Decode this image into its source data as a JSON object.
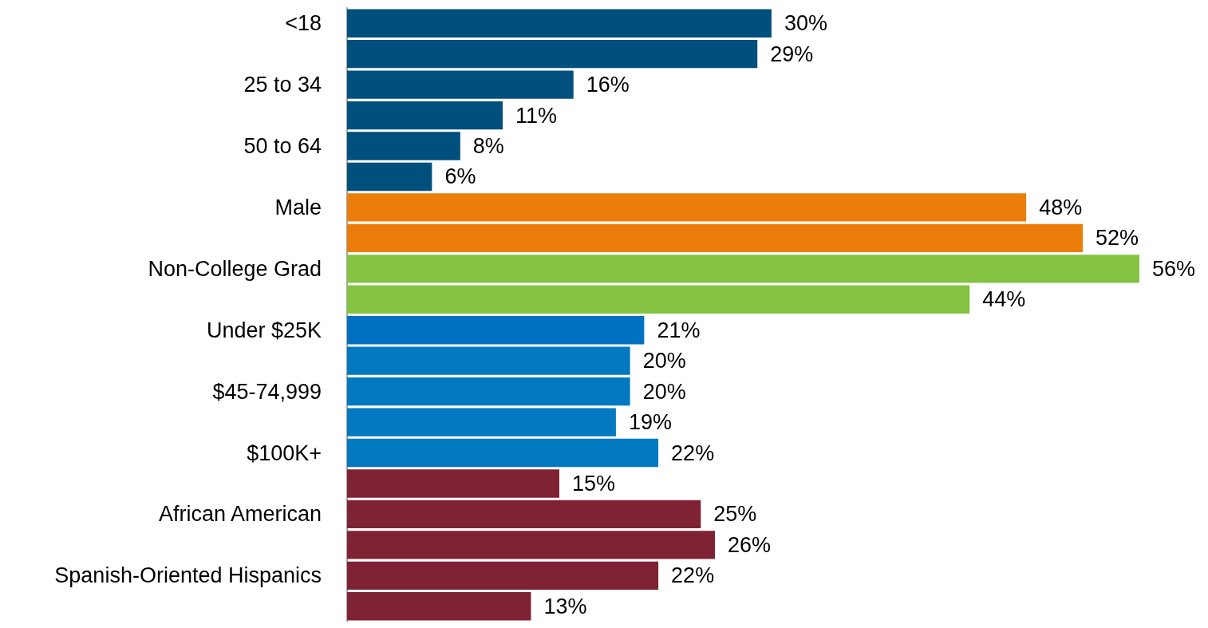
{
  "chart_data": {
    "type": "bar",
    "orientation": "horizontal",
    "categories": [
      "<18",
      null,
      "25 to 34",
      null,
      "50 to 64",
      null,
      "Male",
      null,
      "Non-College Grad",
      null,
      "Under $25K",
      null,
      "$45-74,999",
      null,
      "$100K+",
      null,
      "African American",
      null,
      "Spanish-Oriented Hispanics",
      null
    ],
    "values": [
      30,
      29,
      16,
      11,
      8,
      6,
      48,
      52,
      56,
      44,
      21,
      20,
      20,
      19,
      22,
      15,
      25,
      26,
      22,
      13
    ],
    "value_labels": [
      "30%",
      "29%",
      "16%",
      "11%",
      "8%",
      "6%",
      "48%",
      "52%",
      "56%",
      "44%",
      "21%",
      "20%",
      "20%",
      "19%",
      "22%",
      "15%",
      "25%",
      "26%",
      "22%",
      "13%"
    ],
    "colors": [
      "#004f7c",
      "#004f7c",
      "#004f7c",
      "#004f7c",
      "#004f7c",
      "#004f7c",
      "#ed7d0a",
      "#ed7d0a",
      "#84c341",
      "#84c341",
      "#0070c0",
      "#0079c1",
      "#0079c1",
      "#0079c1",
      "#0079c1",
      "#7f2234",
      "#7f2234",
      "#7f2234",
      "#7f2234",
      "#7f2234"
    ]
  }
}
